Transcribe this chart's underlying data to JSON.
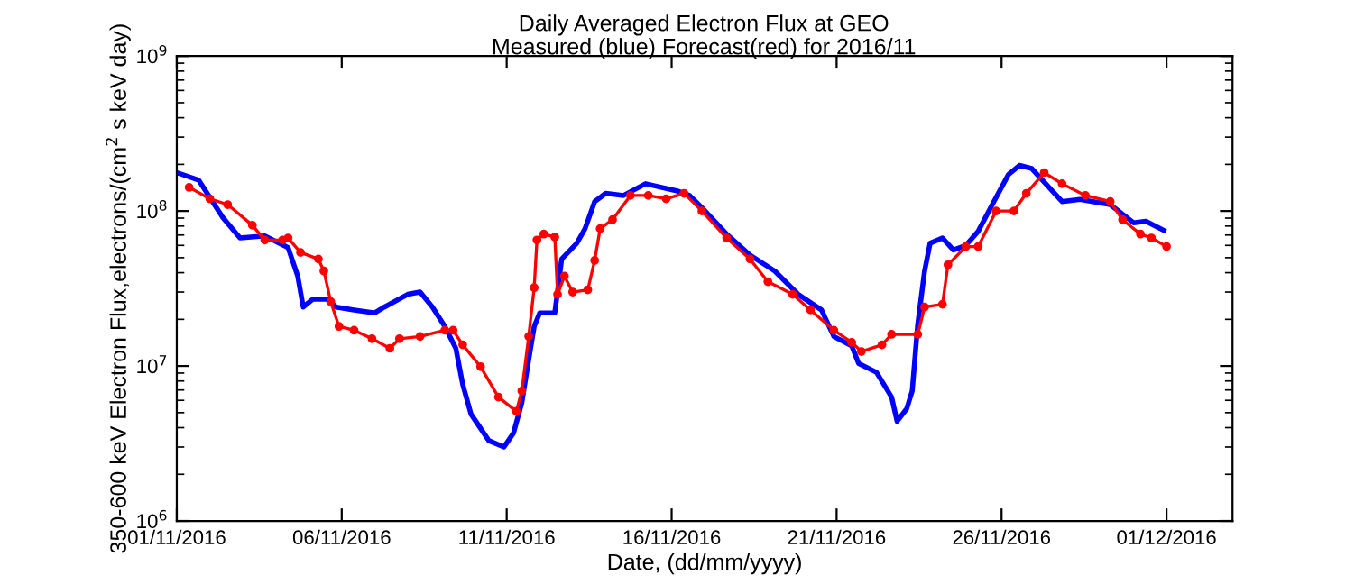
{
  "chart_data": {
    "type": "line",
    "title": "Daily Averaged Electron Flux at GEO",
    "subtitle": "Measured (blue) Forecast(red) for 2016/11",
    "xlabel": "Date, (dd/mm/yyyy)",
    "ylabel": "350-600 keV Electron Flux,electrons/(cm$^{2}$ s keV day)",
    "log": "y",
    "grid": false,
    "xlim": [
      "2016-11-01",
      "2016-12-03"
    ],
    "xticks": [
      {
        "value": "2016-11-01",
        "label": "01/11/2016"
      },
      {
        "value": "2016-11-06",
        "label": "06/11/2016"
      },
      {
        "value": "2016-11-11",
        "label": "11/11/2016"
      },
      {
        "value": "2016-11-16",
        "label": "16/11/2016"
      },
      {
        "value": "2016-11-21",
        "label": "21/11/2016"
      },
      {
        "value": "2016-11-26",
        "label": "26/11/2016"
      },
      {
        "value": "2016-12-01",
        "label": "01/12/2016"
      }
    ],
    "ylim": [
      1000000,
      1000000000
    ],
    "yticks": [
      {
        "value": 1000000,
        "label": "10$^{6}$"
      },
      {
        "value": 10000000,
        "label": "10$^{7}$"
      },
      {
        "value": 100000000,
        "label": "10$^{8}$"
      },
      {
        "value": 1000000000,
        "label": "10$^{9}$"
      }
    ],
    "series": [
      {
        "color": "#0000ff",
        "marker": "none",
        "x": [
          "2016-11-01T00:00",
          "2016-11-01T16:00",
          "2016-11-02T09:00",
          "2016-11-02T22:00",
          "2016-11-03T16:00",
          "2016-11-04T09:00",
          "2016-11-04T16:00",
          "2016-11-04T20:00",
          "2016-11-05T03:00",
          "2016-11-05T13:00",
          "2016-11-05T20:00",
          "2016-11-06T09:00",
          "2016-11-07T00:00",
          "2016-11-07T07:00",
          "2016-11-08T00:00",
          "2016-11-08T09:00",
          "2016-11-08T18:00",
          "2016-11-09T03:00",
          "2016-11-09T11:00",
          "2016-11-09T16:00",
          "2016-11-09T22:00",
          "2016-11-10T11:00",
          "2016-11-10T22:00",
          "2016-11-11T05:00",
          "2016-11-11T11:00",
          "2016-11-11T16:00",
          "2016-11-11T20:00",
          "2016-11-12T00:00",
          "2016-11-12T11:00",
          "2016-11-12T16:00",
          "2016-11-13T03:00",
          "2016-11-13T09:00",
          "2016-11-13T16:00",
          "2016-11-14T00:00",
          "2016-11-14T13:00",
          "2016-11-15T05:00",
          "2016-11-16T05:00",
          "2016-11-16T13:00",
          "2016-11-16T22:00",
          "2016-11-17T16:00",
          "2016-11-18T09:00",
          "2016-11-19T03:00",
          "2016-11-19T20:00",
          "2016-11-20T13:00",
          "2016-11-20T22:00",
          "2016-11-21T11:00",
          "2016-11-21T16:00",
          "2016-11-22T05:00",
          "2016-11-22T16:00",
          "2016-11-22T20:00",
          "2016-11-23T03:00",
          "2016-11-23T07:00",
          "2016-11-23T11:00",
          "2016-11-23T16:00",
          "2016-11-23T20:00",
          "2016-11-24T05:00",
          "2016-11-24T13:00",
          "2016-11-24T22:00",
          "2016-11-25T07:00",
          "2016-11-25T16:00",
          "2016-11-26T05:00",
          "2016-11-26T13:00",
          "2016-11-26T22:00",
          "2016-11-27T20:00",
          "2016-11-28T09:00",
          "2016-11-29T07:00",
          "2016-11-30T00:00",
          "2016-11-30T09:00",
          "2016-11-30T22:00"
        ],
        "values": [
          177000000,
          158000000,
          92000000,
          67000000,
          69000000,
          58000000,
          38000000,
          24000000,
          27000000,
          27000000,
          24000000,
          23000000,
          22000000,
          24000000,
          29000000,
          30000000,
          24000000,
          18000000,
          13000000,
          7600000,
          4900000,
          3300000,
          3000000,
          3700000,
          5800000,
          11000000,
          18000000,
          22000000,
          22000000,
          49000000,
          62000000,
          77000000,
          115000000,
          130000000,
          126000000,
          150000000,
          134000000,
          126000000,
          105000000,
          71000000,
          52000000,
          41000000,
          29000000,
          23000000,
          15500000,
          13500000,
          10400000,
          9100000,
          6300000,
          4400000,
          5300000,
          6900000,
          18500000,
          41000000,
          62000000,
          67000000,
          56000000,
          60000000,
          74000000,
          105000000,
          172000000,
          197000000,
          188000000,
          115000000,
          119000000,
          110000000,
          84000000,
          86000000,
          75000000
        ]
      },
      {
        "color": "#ff0000",
        "type": "line",
        "marker": "circle",
        "x": [
          "2016-11-01T09:00",
          "2016-11-02T00:00",
          "2016-11-02T13:00",
          "2016-11-03T07:00",
          "2016-11-03T16:00",
          "2016-11-04T05:00",
          "2016-11-04T09:00",
          "2016-11-04T18:00",
          "2016-11-05T07:00",
          "2016-11-05T11:00",
          "2016-11-05T16:00",
          "2016-11-05T22:00",
          "2016-11-06T09:00",
          "2016-11-06T22:00",
          "2016-11-07T11:00",
          "2016-11-07T18:00",
          "2016-11-08T09:00",
          "2016-11-09T03:00",
          "2016-11-09T09:00",
          "2016-11-09T16:00",
          "2016-11-10T05:00",
          "2016-11-10T18:00",
          "2016-11-11T07:00",
          "2016-11-11T11:00",
          "2016-11-11T16:00",
          "2016-11-11T20:00",
          "2016-11-11T22:00",
          "2016-11-12T03:00",
          "2016-11-12T11:00",
          "2016-11-12T13:00",
          "2016-11-12T18:00",
          "2016-11-13T00:00",
          "2016-11-13T11:00",
          "2016-11-13T16:00",
          "2016-11-13T20:00",
          "2016-11-14T05:00",
          "2016-11-14T18:00",
          "2016-11-15T07:00",
          "2016-11-15T20:00",
          "2016-11-16T09:00",
          "2016-11-16T22:00",
          "2016-11-17T16:00",
          "2016-11-18T09:00",
          "2016-11-18T22:00",
          "2016-11-19T16:00",
          "2016-11-20T05:00",
          "2016-11-20T22:00",
          "2016-11-21T11:00",
          "2016-11-21T18:00",
          "2016-11-22T09:00",
          "2016-11-22T16:00",
          "2016-11-23T11:00",
          "2016-11-23T16:00",
          "2016-11-24T05:00",
          "2016-11-24T09:00",
          "2016-11-24T22:00",
          "2016-11-25T07:00",
          "2016-11-25T20:00",
          "2016-11-26T09:00",
          "2016-11-26T18:00",
          "2016-11-27T07:00",
          "2016-11-27T20:00",
          "2016-11-28T13:00",
          "2016-11-29T07:00",
          "2016-11-29T16:00",
          "2016-11-30T05:00",
          "2016-11-30T13:00",
          "2016-12-01T00:00"
        ],
        "values": [
          142000000,
          120000000,
          110000000,
          81000000,
          65000000,
          65000000,
          67000000,
          54000000,
          49000000,
          41000000,
          26000000,
          18000000,
          17000000,
          15000000,
          13000000,
          15000000,
          15500000,
          17000000,
          17000000,
          13700000,
          9900000,
          6300000,
          5100000,
          6900000,
          15500000,
          32000000,
          65000000,
          71000000,
          68000000,
          29000000,
          38000000,
          30000000,
          31000000,
          48000000,
          77000000,
          88000000,
          126000000,
          126000000,
          120000000,
          130000000,
          100000000,
          67000000,
          49000000,
          35000000,
          29000000,
          23000000,
          17000000,
          14200000,
          12400000,
          13700000,
          16000000,
          16000000,
          24000000,
          25000000,
          45000000,
          59000000,
          59000000,
          100000000,
          100000000,
          130000000,
          177000000,
          150000000,
          126000000,
          115000000,
          88000000,
          71000000,
          67000000,
          59000000
        ]
      }
    ]
  }
}
